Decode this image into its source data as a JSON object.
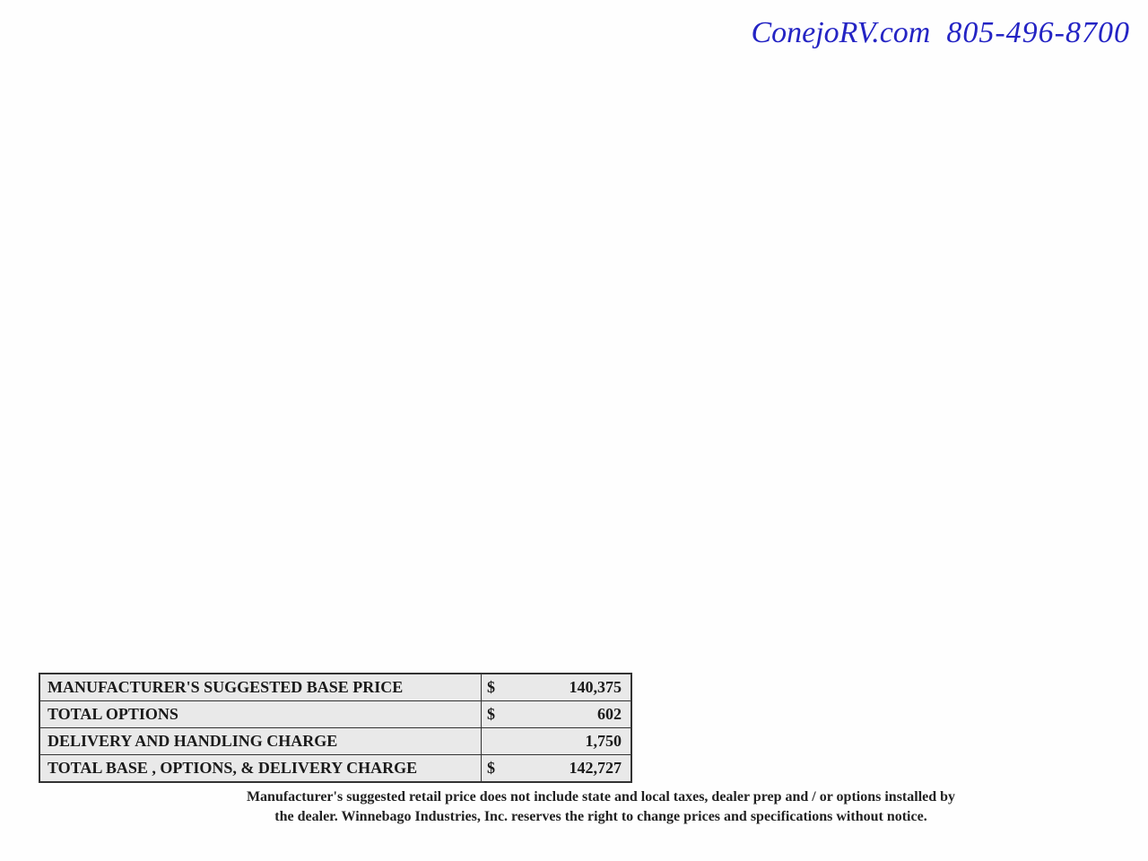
{
  "header": {
    "website": "ConejoRV.com",
    "phone": "805-496-8700"
  },
  "pricing": {
    "rows": [
      {
        "label": "MANUFACTURER'S SUGGESTED BASE PRICE",
        "currency": "$",
        "value": "140,375"
      },
      {
        "label": "TOTAL OPTIONS",
        "currency": "$",
        "value": "602"
      },
      {
        "label": "DELIVERY AND HANDLING CHARGE",
        "currency": "",
        "value": "1,750"
      },
      {
        "label": "TOTAL BASE , OPTIONS, & DELIVERY CHARGE",
        "currency": "$",
        "value": "142,727"
      }
    ]
  },
  "disclaimer": {
    "line1": "Manufacturer's suggested retail price does not include state and local taxes, dealer prep and / or options installed by",
    "line2": "the dealer.  Winnebago Industries, Inc. reserves the right to change prices and specifications without notice."
  },
  "styling": {
    "page_background": "#fefefe",
    "header_text_color": "#2424c4",
    "table_border_color": "#333333",
    "table_cell_background": "#e9e9e9",
    "text_color": "#1a1a1a",
    "header_font_size": 34,
    "table_font_size": 18,
    "disclaimer_font_size": 16
  }
}
